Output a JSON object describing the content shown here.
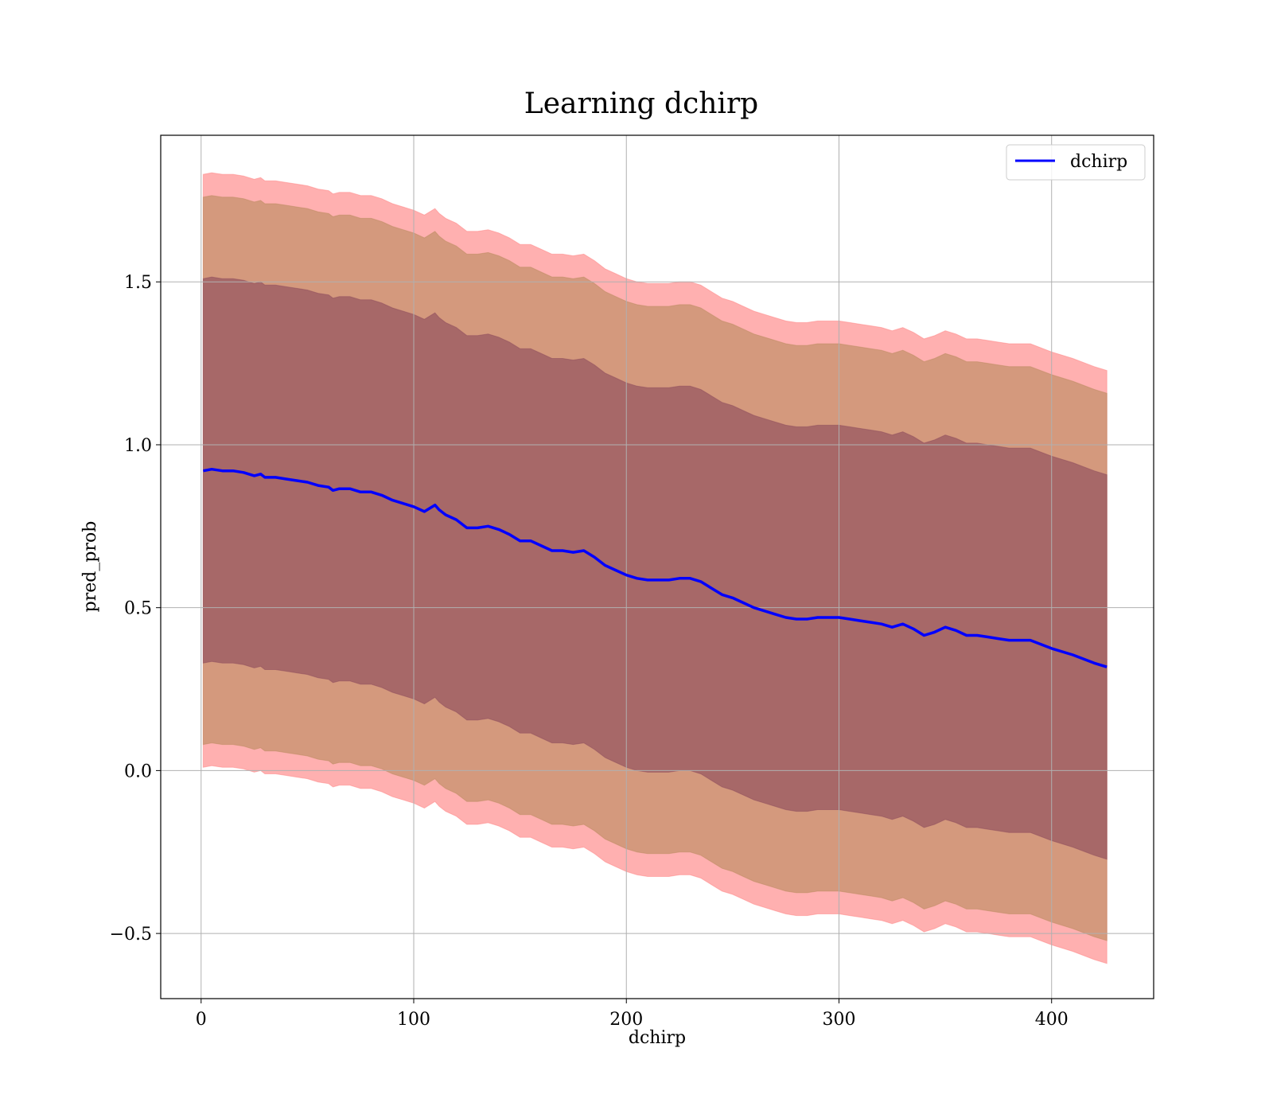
{
  "chart_data": {
    "type": "line",
    "title": "Learning dchirp",
    "xlabel": "dchirp",
    "ylabel": "pred_prob",
    "xlim": [
      -19,
      448
    ],
    "ylim": [
      -0.7,
      1.95
    ],
    "x_ticks": [
      0,
      100,
      200,
      300,
      400
    ],
    "x_tick_labels": [
      "0",
      "100",
      "200",
      "300",
      "400"
    ],
    "y_ticks": [
      -0.5,
      0.0,
      0.5,
      1.0,
      1.5
    ],
    "y_tick_labels": [
      "−0.5",
      "0.0",
      "0.5",
      "1.0",
      "1.5"
    ],
    "grid": true,
    "legend": {
      "position": "top-right",
      "entries": [
        "dchirp"
      ]
    },
    "colors": {
      "line": "#0000ff",
      "band_outer": "#ff8080",
      "band_mid": "#b98a5e",
      "band_inner": "#8b4a5c"
    },
    "band_offsets": {
      "inner_std": 0.59,
      "mid_std": 0.84,
      "outer_std": 0.91
    },
    "series": [
      {
        "name": "dchirp",
        "x": [
          1,
          5,
          10,
          15,
          20,
          25,
          28,
          30,
          35,
          40,
          45,
          50,
          55,
          60,
          62,
          65,
          70,
          75,
          80,
          85,
          90,
          95,
          100,
          105,
          110,
          112,
          115,
          120,
          125,
          130,
          135,
          140,
          145,
          150,
          155,
          160,
          165,
          170,
          175,
          180,
          185,
          190,
          195,
          200,
          205,
          210,
          215,
          220,
          225,
          230,
          235,
          240,
          245,
          250,
          255,
          260,
          265,
          270,
          275,
          280,
          285,
          290,
          295,
          300,
          305,
          310,
          315,
          320,
          325,
          330,
          335,
          340,
          345,
          350,
          355,
          360,
          365,
          370,
          375,
          380,
          385,
          390,
          400,
          410,
          420,
          426
        ],
        "y": [
          0.92,
          0.925,
          0.92,
          0.92,
          0.915,
          0.905,
          0.91,
          0.9,
          0.9,
          0.895,
          0.89,
          0.885,
          0.875,
          0.87,
          0.86,
          0.865,
          0.865,
          0.855,
          0.855,
          0.845,
          0.83,
          0.82,
          0.81,
          0.795,
          0.815,
          0.8,
          0.785,
          0.77,
          0.745,
          0.745,
          0.75,
          0.74,
          0.725,
          0.705,
          0.705,
          0.69,
          0.675,
          0.675,
          0.67,
          0.675,
          0.655,
          0.63,
          0.615,
          0.6,
          0.59,
          0.585,
          0.585,
          0.585,
          0.59,
          0.59,
          0.58,
          0.56,
          0.54,
          0.53,
          0.515,
          0.5,
          0.49,
          0.48,
          0.47,
          0.465,
          0.465,
          0.47,
          0.47,
          0.47,
          0.465,
          0.46,
          0.455,
          0.45,
          0.44,
          0.45,
          0.435,
          0.415,
          0.425,
          0.44,
          0.43,
          0.415,
          0.415,
          0.41,
          0.405,
          0.4,
          0.4,
          0.4,
          0.375,
          0.355,
          0.33,
          0.318
        ]
      }
    ]
  }
}
